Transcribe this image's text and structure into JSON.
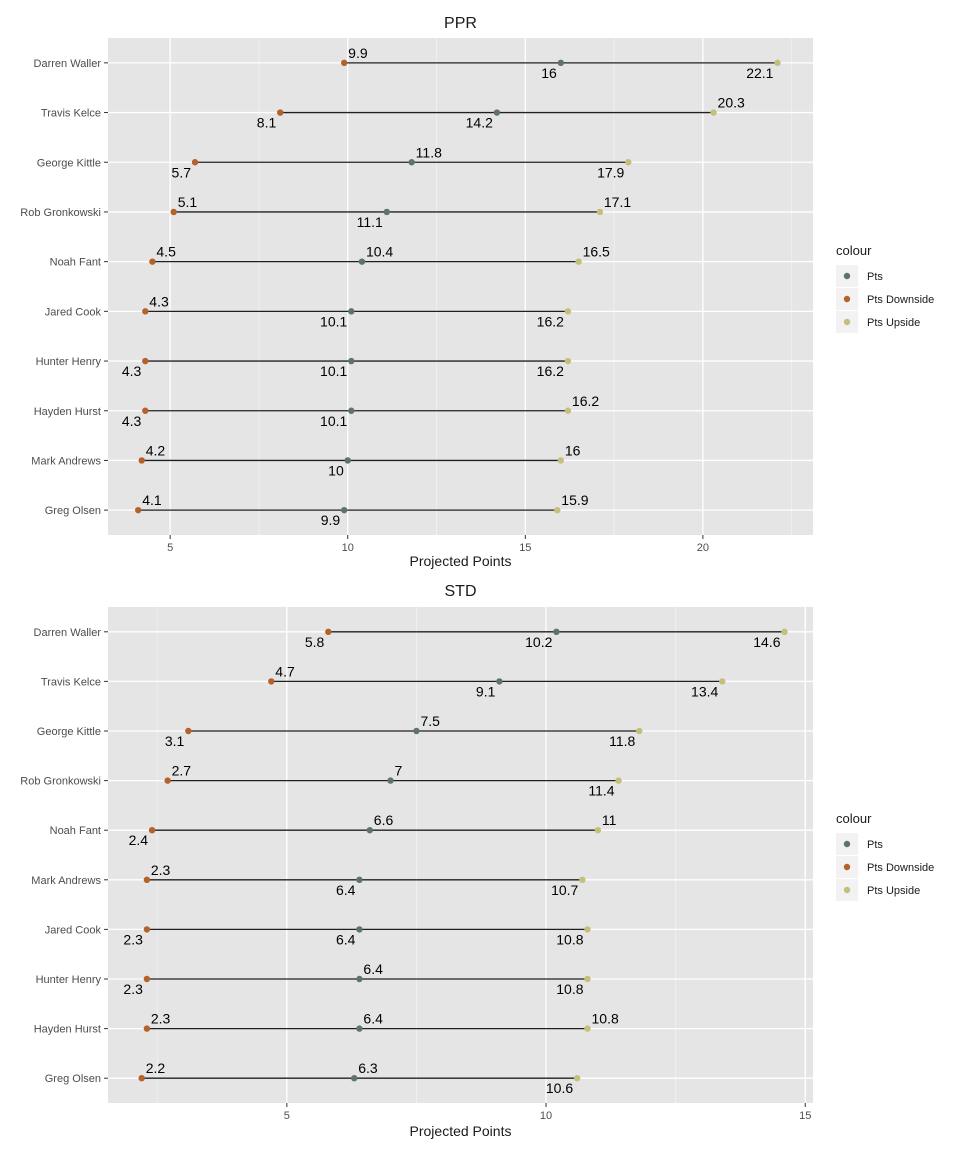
{
  "chart_data": [
    {
      "type": "dumbbell",
      "title": "PPR",
      "xlabel": "Projected Points",
      "ylabel": "",
      "xlim": [
        3.25,
        23.1
      ],
      "xticks": [
        5,
        10,
        15,
        20
      ],
      "grid": true,
      "legend": {
        "title": "colour",
        "placement": "right",
        "entries": [
          {
            "name": "Pts",
            "color": "#5e7369"
          },
          {
            "name": "Pts Downside",
            "color": "#b5612a"
          },
          {
            "name": "Pts Upside",
            "color": "#c4bf7c"
          }
        ]
      },
      "categories": [
        "Darren Waller",
        "Travis Kelce",
        "George Kittle",
        "Rob Gronkowski",
        "Noah Fant",
        "Jared Cook",
        "Hunter Henry",
        "Hayden Hurst",
        "Mark Andrews",
        "Greg Olsen"
      ],
      "series": [
        {
          "name": "Pts",
          "values": [
            16,
            14.2,
            11.8,
            11.1,
            10.4,
            10.1,
            10.1,
            10.1,
            10,
            9.9
          ]
        },
        {
          "name": "Pts Downside",
          "values": [
            9.9,
            8.1,
            5.7,
            5.1,
            4.5,
            4.3,
            4.3,
            4.3,
            4.2,
            4.1
          ]
        },
        {
          "name": "Pts Upside",
          "values": [
            22.1,
            20.3,
            17.9,
            17.1,
            16.5,
            16.2,
            16.2,
            16.2,
            16,
            15.9
          ]
        }
      ],
      "labels": {
        "Pts": [
          "16",
          "14.2",
          "11.8",
          "11.1",
          "10.4",
          "10.1",
          "10.1",
          "10.1",
          "10",
          "9.9"
        ],
        "Pts Downside": [
          "9.9",
          "8.1",
          "5.7",
          "5.1",
          "4.5",
          "4.3",
          "4.3",
          "4.3",
          "4.2",
          "4.1"
        ],
        "Pts Upside": [
          "22.1",
          "20.3",
          "17.9",
          "17.1",
          "16.5",
          "16.2",
          "16.2",
          "16.2",
          "16",
          "15.9"
        ]
      },
      "label_side": {
        "Pts": [
          "below",
          "below",
          "above",
          "below",
          "above",
          "below",
          "below",
          "below",
          "below",
          "below"
        ],
        "Pts Downside": [
          "above",
          "below",
          "below",
          "above",
          "above",
          "above",
          "below",
          "below",
          "above",
          "above"
        ],
        "Pts Upside": [
          "below",
          "above",
          "below",
          "above",
          "above",
          "below",
          "below",
          "above",
          "above",
          "above"
        ]
      }
    },
    {
      "type": "dumbbell",
      "title": "STD",
      "xlabel": "Projected Points",
      "ylabel": "",
      "xlim": [
        1.55,
        15.15
      ],
      "xticks": [
        5,
        10,
        15
      ],
      "grid": true,
      "legend": {
        "title": "colour",
        "placement": "right",
        "entries": [
          {
            "name": "Pts",
            "color": "#5e7369"
          },
          {
            "name": "Pts Downside",
            "color": "#b5612a"
          },
          {
            "name": "Pts Upside",
            "color": "#c4bf7c"
          }
        ]
      },
      "categories": [
        "Darren Waller",
        "Travis Kelce",
        "George Kittle",
        "Rob Gronkowski",
        "Noah Fant",
        "Mark Andrews",
        "Jared Cook",
        "Hunter Henry",
        "Hayden Hurst",
        "Greg Olsen"
      ],
      "series": [
        {
          "name": "Pts",
          "values": [
            10.2,
            9.1,
            7.5,
            7,
            6.6,
            6.4,
            6.4,
            6.4,
            6.4,
            6.3
          ]
        },
        {
          "name": "Pts Downside",
          "values": [
            5.8,
            4.7,
            3.1,
            2.7,
            2.4,
            2.3,
            2.3,
            2.3,
            2.3,
            2.2
          ]
        },
        {
          "name": "Pts Upside",
          "values": [
            14.6,
            13.4,
            11.8,
            11.4,
            11,
            10.7,
            10.8,
            10.8,
            10.8,
            10.6
          ]
        }
      ],
      "labels": {
        "Pts": [
          "10.2",
          "9.1",
          "7.5",
          "7",
          "6.6",
          "6.4",
          "6.4",
          "6.4",
          "6.4",
          "6.3"
        ],
        "Pts Downside": [
          "5.8",
          "4.7",
          "3.1",
          "2.7",
          "2.4",
          "2.3",
          "2.3",
          "2.3",
          "2.3",
          "2.2"
        ],
        "Pts Upside": [
          "14.6",
          "13.4",
          "11.8",
          "11.4",
          "11",
          "10.7",
          "10.8",
          "10.8",
          "10.8",
          "10.6"
        ]
      },
      "label_side": {
        "Pts": [
          "below",
          "below",
          "above",
          "above",
          "above",
          "below",
          "below",
          "above",
          "above",
          "above"
        ],
        "Pts Downside": [
          "below",
          "above",
          "below",
          "above",
          "below",
          "above",
          "below",
          "below",
          "above",
          "above"
        ],
        "Pts Upside": [
          "below",
          "below",
          "below",
          "below",
          "above",
          "below",
          "below",
          "below",
          "above",
          "below"
        ]
      }
    }
  ]
}
